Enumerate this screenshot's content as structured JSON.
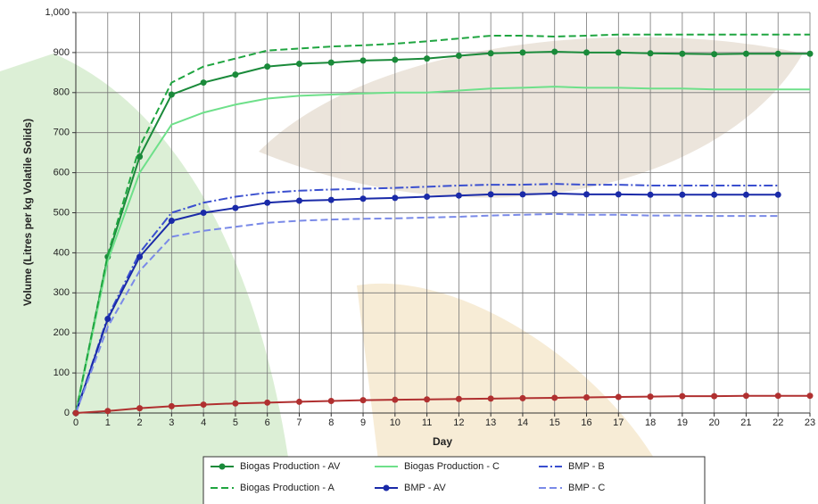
{
  "chart_data": {
    "type": "line",
    "x_label": "Day",
    "y_label": "Volume (Litres per kg Volatile Solids)",
    "x": [
      0,
      1,
      2,
      3,
      4,
      5,
      6,
      7,
      8,
      9,
      10,
      11,
      12,
      13,
      14,
      15,
      16,
      17,
      18,
      19,
      20,
      21,
      22,
      23
    ],
    "xlim": [
      0,
      23
    ],
    "xticks": [
      0,
      1,
      2,
      3,
      4,
      5,
      6,
      7,
      8,
      9,
      10,
      11,
      12,
      13,
      14,
      15,
      16,
      17,
      18,
      19,
      20,
      21,
      22,
      23
    ],
    "ylim": [
      0,
      1000
    ],
    "yticks": [
      0,
      100,
      200,
      300,
      400,
      500,
      600,
      700,
      800,
      900,
      {
        "value": 1000,
        "label": "1,000"
      }
    ],
    "grid": true,
    "series": [
      {
        "name": "Biogas Production - AV",
        "color": "#1a8a3a",
        "dash": "solid",
        "markers": true,
        "values": [
          0,
          390,
          640,
          795,
          825,
          845,
          865,
          872,
          875,
          880,
          882,
          885,
          892,
          898,
          900,
          902,
          900,
          900,
          898,
          897,
          896,
          897,
          897,
          897
        ]
      },
      {
        "name": "Biogas Production - C",
        "color": "#6ee08a",
        "dash": "solid",
        "markers": false,
        "values": [
          0,
          380,
          600,
          720,
          750,
          770,
          785,
          792,
          795,
          798,
          800,
          800,
          805,
          810,
          812,
          815,
          812,
          812,
          810,
          810,
          808,
          808,
          808,
          808
        ]
      },
      {
        "name": "BMP - B",
        "color": "#3a4fcf",
        "dash": "dashdot",
        "markers": false,
        "values": [
          0,
          240,
          400,
          500,
          525,
          540,
          550,
          555,
          558,
          560,
          562,
          565,
          568,
          570,
          570,
          572,
          570,
          570,
          568,
          568,
          568,
          568,
          568,
          null
        ]
      },
      {
        "name": "Biogas Production - A",
        "color": "#1fa540",
        "dash": "dashed",
        "markers": false,
        "values": [
          0,
          395,
          665,
          825,
          865,
          885,
          905,
          910,
          915,
          918,
          922,
          928,
          935,
          942,
          942,
          940,
          942,
          945,
          945,
          945,
          945,
          945,
          945,
          945
        ]
      },
      {
        "name": "BMP - AV",
        "color": "#1a2aa8",
        "dash": "solid",
        "markers": true,
        "values": [
          0,
          235,
          390,
          480,
          500,
          512,
          525,
          530,
          532,
          535,
          537,
          540,
          543,
          546,
          546,
          548,
          546,
          546,
          545,
          545,
          545,
          545,
          545,
          null
        ]
      },
      {
        "name": "BMP - C",
        "color": "#7a8ae8",
        "dash": "dashed",
        "markers": false,
        "values": [
          0,
          215,
          355,
          440,
          455,
          465,
          475,
          480,
          483,
          485,
          486,
          488,
          490,
          493,
          495,
          497,
          495,
          495,
          493,
          493,
          492,
          492,
          492,
          null
        ]
      },
      {
        "color": "#b03030",
        "dash": "solid",
        "markers": true,
        "values": [
          0,
          5,
          12,
          17,
          21,
          24,
          26,
          28,
          30,
          32,
          33,
          34,
          35,
          36,
          37,
          38,
          39,
          40,
          41,
          42,
          42,
          43,
          43,
          43
        ]
      }
    ]
  }
}
